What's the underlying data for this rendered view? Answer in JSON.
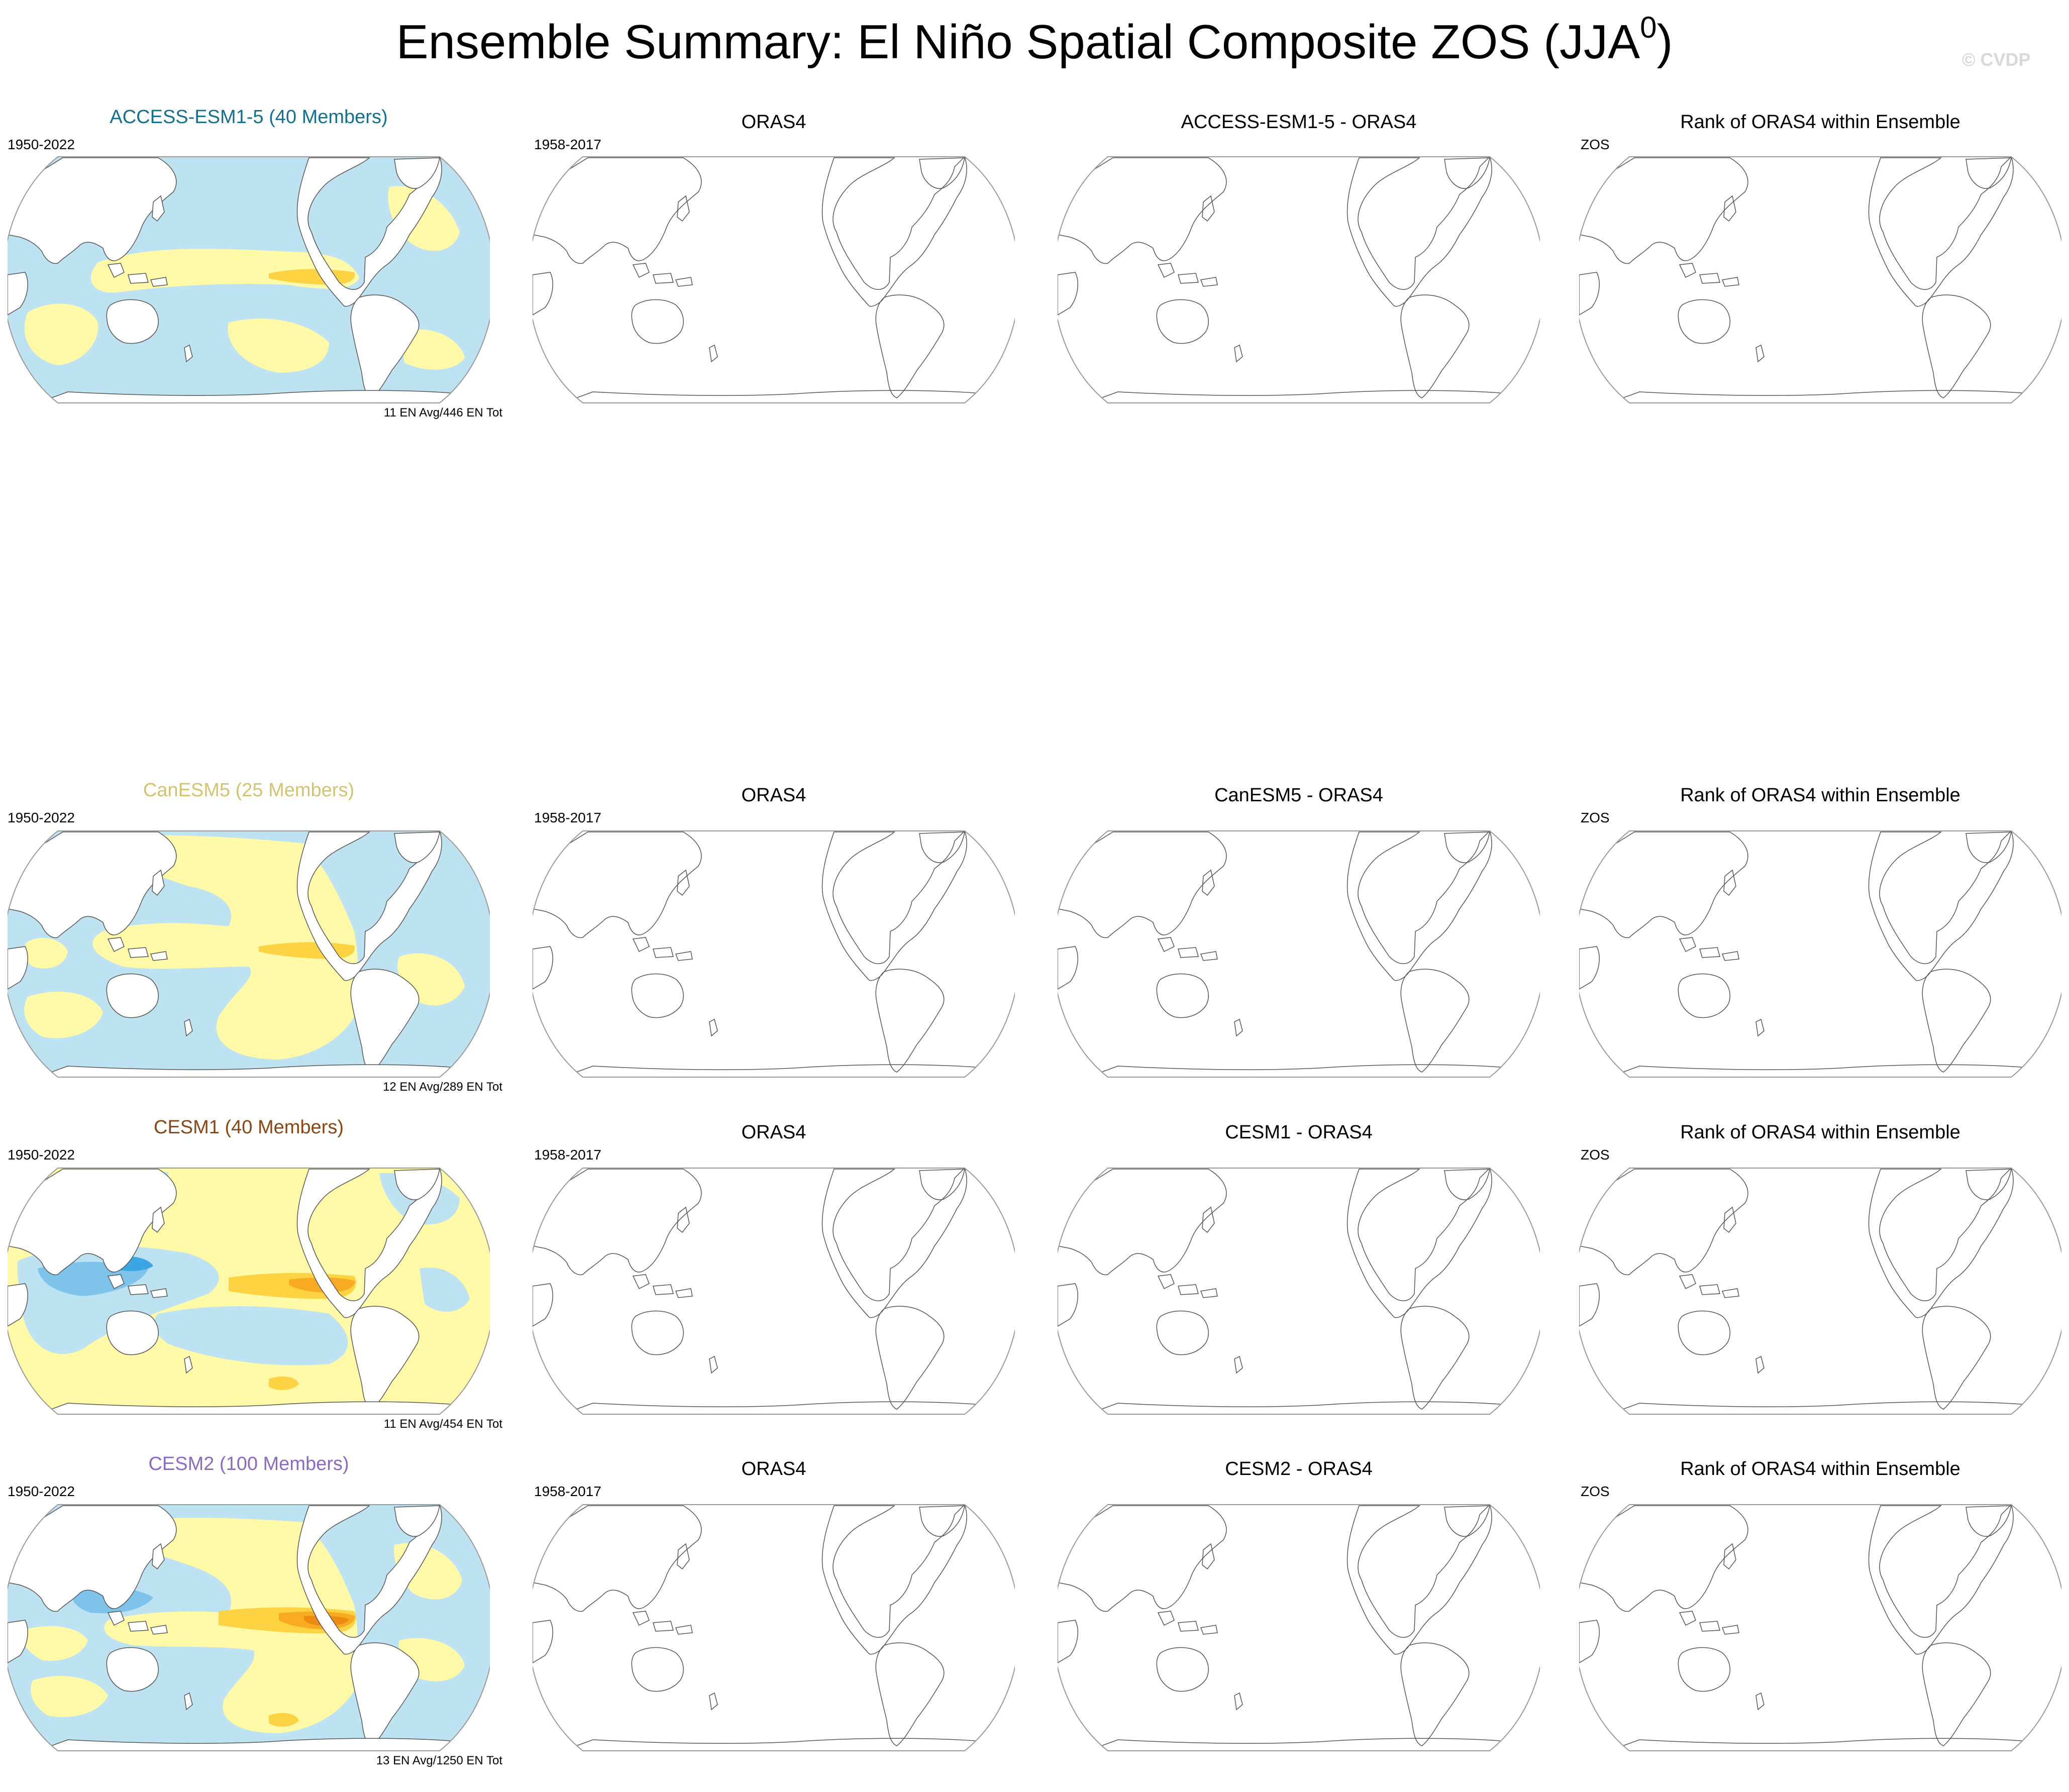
{
  "figure": {
    "title_main": "Ensemble Summary: El Niño Spatial Composite ZOS (JJA",
    "title_sup": "0",
    "title_close": ")",
    "credit": "© CVDP"
  },
  "colors": {
    "yellow": "#fff9a8",
    "light_blue": "#bde2f2",
    "medium_blue": "#7dc3ea",
    "dark_blue": "#3ca7e4",
    "light_orange": "#fdd343",
    "orange": "#f8aa22",
    "dark_orange": "#ec8a12",
    "coastline": "#555555",
    "model_1": "#14708f",
    "model_2": "#d2c36f",
    "model_3": "#8b4513",
    "model_4": "#8c69c9"
  },
  "rows": [
    {
      "model": {
        "title": "ACCESS-ESM1-5 (40 Members)",
        "period": "1950-2022",
        "count": "11 EN Avg/446 EN Tot"
      },
      "obs": {
        "title": "ORAS4",
        "period": "1958-2017"
      },
      "diff": {
        "title": "ACCESS-ESM1-5 - ORAS4"
      },
      "rank": {
        "title": "Rank of ORAS4 within Ensemble",
        "variable": "ZOS"
      }
    },
    {
      "model": {
        "title": "CanESM5 (25 Members)",
        "period": "1950-2022",
        "count": "12 EN Avg/289 EN Tot"
      },
      "obs": {
        "title": "ORAS4",
        "period": "1958-2017"
      },
      "diff": {
        "title": "CanESM5 - ORAS4"
      },
      "rank": {
        "title": "Rank of ORAS4 within Ensemble",
        "variable": "ZOS"
      }
    },
    {
      "model": {
        "title": "CESM1 (40 Members)",
        "period": "1950-2022",
        "count": "11 EN Avg/454 EN Tot"
      },
      "obs": {
        "title": "ORAS4",
        "period": "1958-2017"
      },
      "diff": {
        "title": "CESM1 - ORAS4"
      },
      "rank": {
        "title": "Rank of ORAS4 within Ensemble",
        "variable": "ZOS"
      }
    },
    {
      "model": {
        "title": "CESM2 (100 Members)",
        "period": "1950-2022",
        "count": "13 EN Avg/1250 EN Tot"
      },
      "obs": {
        "title": "ORAS4",
        "period": "1958-2017"
      },
      "diff": {
        "title": "CESM2 - ORAS4"
      },
      "rank": {
        "title": "Rank of ORAS4 within Ensemble",
        "variable": "ZOS"
      }
    }
  ]
}
